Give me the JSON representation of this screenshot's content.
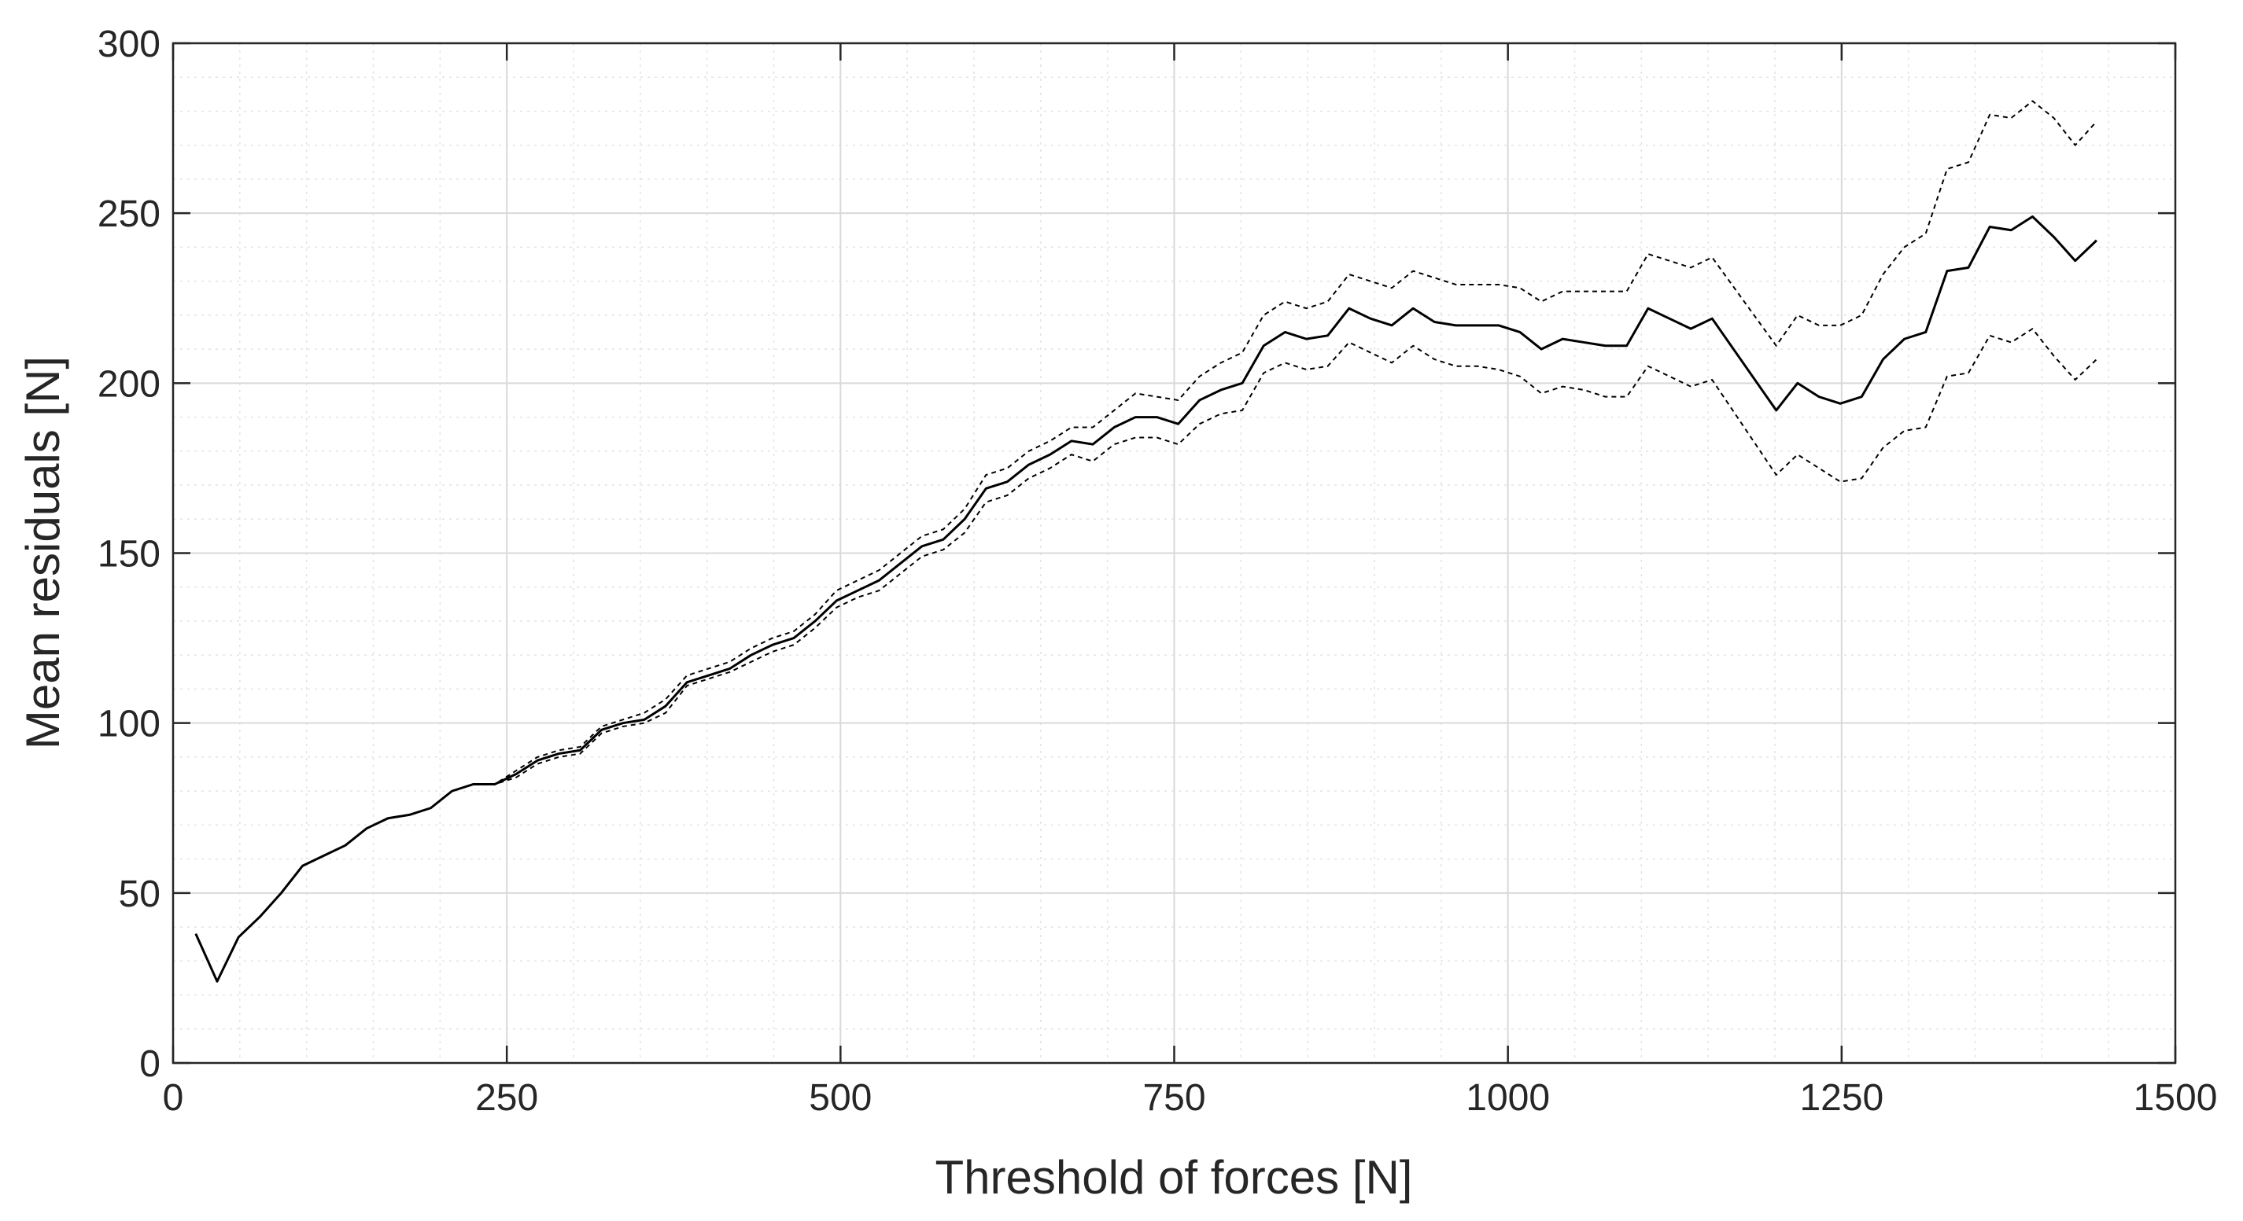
{
  "chart_data": {
    "type": "line",
    "title": "",
    "xlabel": "Threshold of forces [N]",
    "ylabel": "Mean residuals [N]",
    "xlim": [
      0,
      1500
    ],
    "ylim": [
      0,
      300
    ],
    "xticks": [
      0,
      250,
      500,
      750,
      1000,
      1250,
      1500
    ],
    "yticks": [
      0,
      50,
      100,
      150,
      200,
      250,
      300
    ],
    "xtick_labels": [
      "0",
      "250",
      "500",
      "750",
      "1000",
      "1250",
      "1500"
    ],
    "ytick_labels": [
      "0",
      "50",
      "100",
      "150",
      "200",
      "250",
      "300"
    ],
    "grid": true,
    "minor_grid": true,
    "x": [
      17,
      33,
      49,
      65,
      81,
      97,
      113,
      129,
      145,
      161,
      177,
      193,
      209,
      225,
      241,
      257,
      273,
      289,
      305,
      321,
      337,
      353,
      369,
      385,
      401,
      417,
      433,
      449,
      465,
      481,
      497,
      513,
      529,
      545,
      561,
      577,
      593,
      609,
      625,
      641,
      657,
      673,
      689,
      705,
      721,
      737,
      753,
      769,
      785,
      801,
      817,
      833,
      849,
      865,
      881,
      897,
      913,
      929,
      945,
      961,
      977,
      993,
      1009,
      1025,
      1041,
      1057,
      1073,
      1089,
      1105,
      1121,
      1137,
      1153,
      1201,
      1217,
      1233,
      1249,
      1265,
      1281,
      1297,
      1313,
      1329,
      1345,
      1361,
      1377,
      1393,
      1409,
      1425,
      1441
    ],
    "series": [
      {
        "name": "",
        "style": "solid",
        "values": [
          38,
          24,
          37,
          43,
          50,
          58,
          61,
          64,
          69,
          72,
          73,
          75,
          80,
          82,
          82,
          85,
          89,
          91,
          92,
          98,
          100,
          101,
          105,
          112,
          114,
          116,
          120,
          123,
          125,
          130,
          136,
          139,
          142,
          147,
          152,
          154,
          160,
          169,
          171,
          176,
          179,
          183,
          182,
          187,
          190,
          190,
          188,
          195,
          198,
          200,
          211,
          215,
          213,
          214,
          222,
          219,
          217,
          222,
          218,
          217,
          217,
          217,
          215,
          210,
          213,
          212,
          211,
          211,
          222,
          219,
          216,
          219,
          192,
          200,
          196,
          194,
          196,
          207,
          213,
          215,
          233,
          234,
          246,
          245,
          249,
          243,
          236,
          242
        ]
      },
      {
        "name": "",
        "style": "dashed",
        "values": [
          38,
          24,
          37,
          43,
          50,
          58,
          61,
          64,
          69,
          72,
          73,
          75,
          80,
          82,
          82,
          86,
          90,
          92,
          93,
          99,
          101,
          103,
          107,
          114,
          116,
          118,
          122,
          125,
          127,
          132,
          139,
          142,
          145,
          150,
          155,
          157,
          163,
          173,
          175,
          180,
          183,
          187,
          187,
          192,
          197,
          196,
          195,
          202,
          206,
          209,
          220,
          224,
          222,
          224,
          232,
          230,
          228,
          233,
          231,
          229,
          229,
          229,
          228,
          224,
          227,
          227,
          227,
          227,
          238,
          236,
          234,
          237,
          211,
          220,
          217,
          217,
          220,
          232,
          240,
          244,
          263,
          265,
          279,
          278,
          283,
          278,
          270,
          277
        ]
      },
      {
        "name": "",
        "style": "dashed",
        "values": [
          38,
          24,
          37,
          43,
          50,
          58,
          61,
          64,
          69,
          72,
          73,
          75,
          80,
          82,
          82,
          84,
          88,
          90,
          91,
          97,
          99,
          100,
          103,
          111,
          113,
          115,
          118,
          121,
          123,
          128,
          134,
          137,
          139,
          144,
          149,
          151,
          156,
          165,
          167,
          172,
          175,
          179,
          177,
          182,
          184,
          184,
          182,
          188,
          191,
          192,
          203,
          206,
          204,
          205,
          212,
          209,
          206,
          211,
          207,
          205,
          205,
          204,
          202,
          197,
          199,
          198,
          196,
          196,
          205,
          202,
          199,
          201,
          173,
          179,
          175,
          171,
          172,
          181,
          186,
          187,
          202,
          203,
          214,
          212,
          216,
          208,
          201,
          207
        ]
      }
    ]
  }
}
